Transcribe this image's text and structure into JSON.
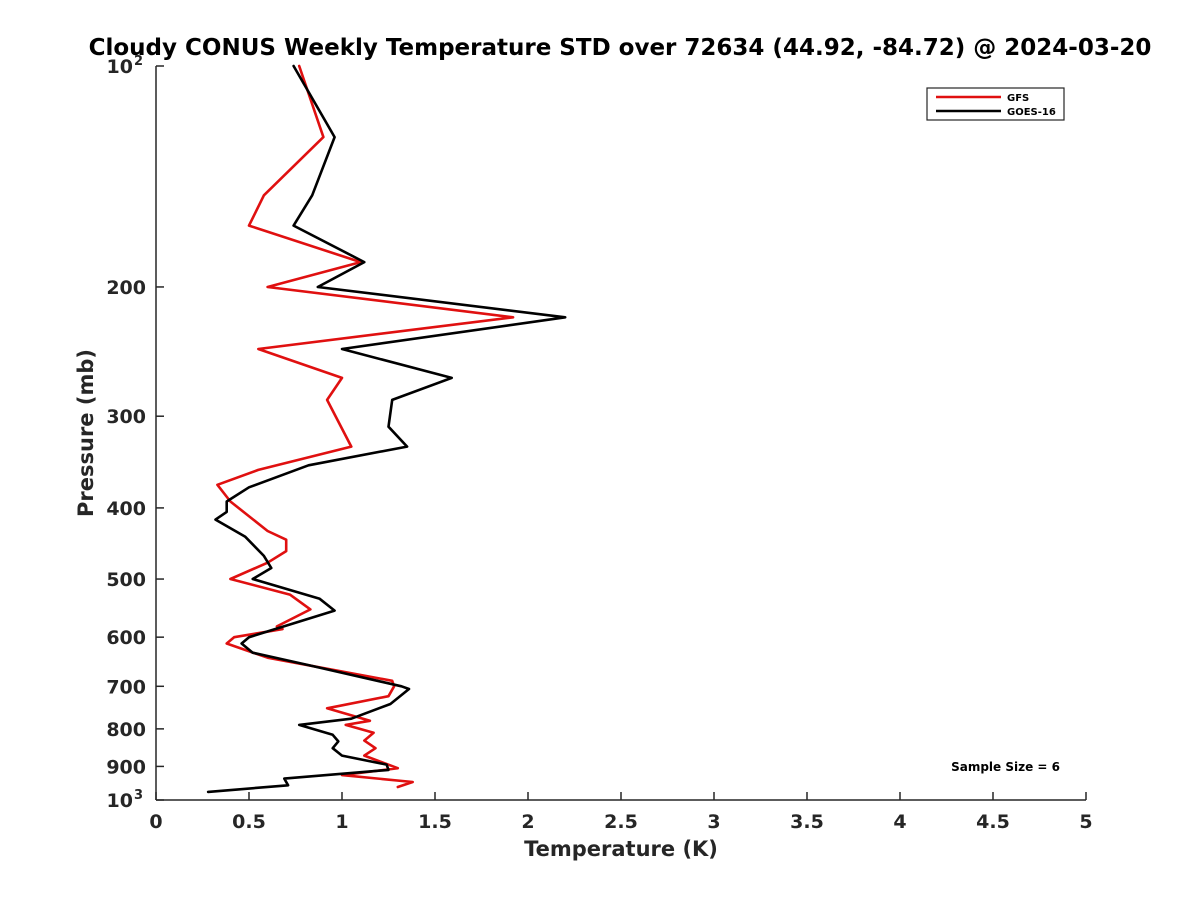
{
  "chart_data": {
    "type": "line",
    "title": "Cloudy CONUS Weekly Temperature STD over 72634 (44.92, -84.72) @ 2024-03-20",
    "xlabel": "Temperature (K)",
    "ylabel": "Pressure (mb)",
    "xlim": [
      0,
      5
    ],
    "ylim": [
      100,
      1000
    ],
    "yscale": "log",
    "y_reversed": true,
    "grid": false,
    "legend_position": "top-right",
    "x_ticks": [
      {
        "value": 0,
        "label": "0"
      },
      {
        "value": 0.5,
        "label": "0.5"
      },
      {
        "value": 1,
        "label": "1"
      },
      {
        "value": 1.5,
        "label": "1.5"
      },
      {
        "value": 2,
        "label": "2"
      },
      {
        "value": 2.5,
        "label": "2.5"
      },
      {
        "value": 3,
        "label": "3"
      },
      {
        "value": 3.5,
        "label": "3.5"
      },
      {
        "value": 4,
        "label": "4"
      },
      {
        "value": 4.5,
        "label": "4.5"
      },
      {
        "value": 5,
        "label": "5"
      }
    ],
    "y_ticks": [
      {
        "value": 100,
        "label": "10",
        "sup": "2"
      },
      {
        "value": 200,
        "label": "200",
        "sup": ""
      },
      {
        "value": 300,
        "label": "300",
        "sup": ""
      },
      {
        "value": 400,
        "label": "400",
        "sup": ""
      },
      {
        "value": 500,
        "label": "500",
        "sup": ""
      },
      {
        "value": 600,
        "label": "600",
        "sup": ""
      },
      {
        "value": 700,
        "label": "700",
        "sup": ""
      },
      {
        "value": 800,
        "label": "800",
        "sup": ""
      },
      {
        "value": 900,
        "label": "900",
        "sup": ""
      },
      {
        "value": 1000,
        "label": "10",
        "sup": "3"
      }
    ],
    "series": [
      {
        "name": "GFS",
        "color": "#e01010",
        "points": [
          [
            0.77,
            100
          ],
          [
            0.9,
            125
          ],
          [
            0.58,
            150
          ],
          [
            0.5,
            165
          ],
          [
            1.1,
            185
          ],
          [
            0.6,
            200
          ],
          [
            1.92,
            220
          ],
          [
            0.55,
            243
          ],
          [
            1.0,
            266
          ],
          [
            0.92,
            285
          ],
          [
            1.05,
            330
          ],
          [
            0.55,
            355
          ],
          [
            0.33,
            372
          ],
          [
            0.4,
            392
          ],
          [
            0.6,
            430
          ],
          [
            0.7,
            442
          ],
          [
            0.7,
            458
          ],
          [
            0.6,
            475
          ],
          [
            0.4,
            500
          ],
          [
            0.72,
            525
          ],
          [
            0.83,
            550
          ],
          [
            0.65,
            580
          ],
          [
            0.68,
            585
          ],
          [
            0.42,
            600
          ],
          [
            0.38,
            612
          ],
          [
            0.6,
            640
          ],
          [
            1.27,
            688
          ],
          [
            1.28,
            700
          ],
          [
            1.25,
            722
          ],
          [
            0.92,
            750
          ],
          [
            1.15,
            780
          ],
          [
            1.02,
            790
          ],
          [
            1.17,
            810
          ],
          [
            1.12,
            830
          ],
          [
            1.18,
            850
          ],
          [
            1.12,
            870
          ],
          [
            1.3,
            905
          ],
          [
            1.0,
            925
          ],
          [
            1.38,
            945
          ],
          [
            1.3,
            960
          ]
        ]
      },
      {
        "name": "GOES-16",
        "color": "#000000",
        "points": [
          [
            0.74,
            100
          ],
          [
            0.96,
            125
          ],
          [
            0.84,
            150
          ],
          [
            0.74,
            165
          ],
          [
            1.12,
            185
          ],
          [
            0.87,
            200
          ],
          [
            2.2,
            220
          ],
          [
            1.0,
            243
          ],
          [
            1.59,
            266
          ],
          [
            1.27,
            285
          ],
          [
            1.25,
            310
          ],
          [
            1.35,
            330
          ],
          [
            0.82,
            350
          ],
          [
            0.5,
            375
          ],
          [
            0.38,
            392
          ],
          [
            0.38,
            405
          ],
          [
            0.32,
            415
          ],
          [
            0.48,
            438
          ],
          [
            0.58,
            465
          ],
          [
            0.62,
            483
          ],
          [
            0.52,
            500
          ],
          [
            0.88,
            532
          ],
          [
            0.96,
            552
          ],
          [
            0.5,
            600
          ],
          [
            0.46,
            612
          ],
          [
            0.52,
            630
          ],
          [
            0.82,
            655
          ],
          [
            1.32,
            700
          ],
          [
            1.36,
            706
          ],
          [
            1.26,
            740
          ],
          [
            1.05,
            775
          ],
          [
            0.77,
            790
          ],
          [
            0.95,
            815
          ],
          [
            0.98,
            832
          ],
          [
            0.95,
            850
          ],
          [
            1.0,
            870
          ],
          [
            1.24,
            895
          ],
          [
            1.25,
            910
          ],
          [
            0.69,
            935
          ],
          [
            0.71,
            955
          ],
          [
            0.28,
            975
          ]
        ]
      }
    ],
    "annotation": "Sample Size = 6"
  }
}
